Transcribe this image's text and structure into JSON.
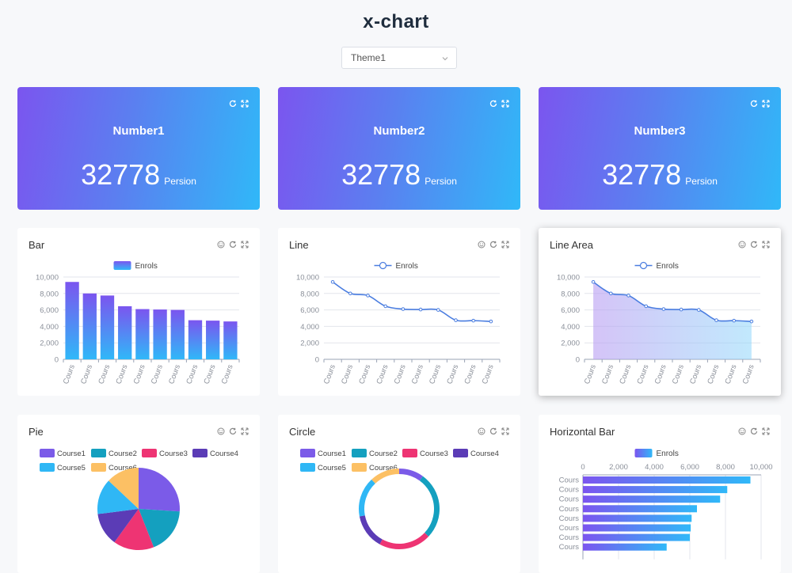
{
  "app_title": "x-chart",
  "theme_select": {
    "value": "Theme1"
  },
  "number_cards": [
    {
      "title": "Number1",
      "value": "32778",
      "unit": "Persion"
    },
    {
      "title": "Number2",
      "value": "32778",
      "unit": "Persion"
    },
    {
      "title": "Number3",
      "value": "32778",
      "unit": "Persion"
    }
  ],
  "cards": {
    "bar": {
      "title": "Bar"
    },
    "line": {
      "title": "Line"
    },
    "line_area": {
      "title": "Line Area"
    },
    "pie": {
      "title": "Pie"
    },
    "circle": {
      "title": "Circle"
    },
    "hbar": {
      "title": "Horizontal Bar"
    }
  },
  "colors": {
    "gradient_start": "#7b55ef",
    "gradient_end": "#30b8f8",
    "line": "#4a7de0",
    "course1": "#7b5be8",
    "course2": "#14a0bf",
    "course3": "#ee3473",
    "course4": "#5b3cb6",
    "course5": "#2fb7f5",
    "course6": "#fcc064"
  },
  "icons": {
    "number_card": [
      "refresh-icon",
      "fullscreen-icon"
    ],
    "chart_card": [
      "smile-icon",
      "refresh-icon",
      "fullscreen-icon"
    ]
  },
  "chart_data": [
    {
      "id": "bar",
      "type": "bar",
      "title": "Bar",
      "legend": [
        "Enrols"
      ],
      "legend_position": "top-center",
      "categories": [
        "Cours",
        "Cours",
        "Cours",
        "Cours",
        "Cours",
        "Cours",
        "Cours",
        "Cours",
        "Cours",
        "Cours"
      ],
      "values": [
        9400,
        8000,
        7750,
        6450,
        6100,
        6050,
        6000,
        4750,
        4700,
        4600
      ],
      "ylim": [
        0,
        10000
      ],
      "yticks": [
        "0",
        "2,000",
        "4,000",
        "6,000",
        "8,000",
        "10,000"
      ],
      "grid": true
    },
    {
      "id": "line",
      "type": "line",
      "title": "Line",
      "legend": [
        "Enrols"
      ],
      "legend_position": "top-center",
      "categories": [
        "Cours",
        "Cours",
        "Cours",
        "Cours",
        "Cours",
        "Cours",
        "Cours",
        "Cours",
        "Cours",
        "Cours"
      ],
      "values": [
        9400,
        8000,
        7750,
        6450,
        6100,
        6050,
        6000,
        4750,
        4700,
        4600
      ],
      "ylim": [
        0,
        10000
      ],
      "yticks": [
        "0",
        "2,000",
        "4,000",
        "6,000",
        "8,000",
        "10,000"
      ],
      "grid": true
    },
    {
      "id": "line_area",
      "type": "area",
      "title": "Line Area",
      "legend": [
        "Enrols"
      ],
      "legend_position": "top-center",
      "categories": [
        "Cours",
        "Cours",
        "Cours",
        "Cours",
        "Cours",
        "Cours",
        "Cours",
        "Cours",
        "Cours",
        "Cours"
      ],
      "values": [
        9400,
        8000,
        7750,
        6450,
        6100,
        6050,
        6000,
        4750,
        4700,
        4600
      ],
      "ylim": [
        0,
        10000
      ],
      "yticks": [
        "0",
        "2,000",
        "4,000",
        "6,000",
        "8,000",
        "10,000"
      ],
      "grid": true
    },
    {
      "id": "pie",
      "type": "pie",
      "title": "Pie",
      "legend": [
        "Course1",
        "Course2",
        "Course3",
        "Course4",
        "Course5",
        "Course6"
      ],
      "legend_position": "top",
      "values": [
        26,
        18,
        16,
        13,
        14,
        13
      ]
    },
    {
      "id": "circle",
      "type": "pie",
      "title": "Circle",
      "legend": [
        "Course1",
        "Course2",
        "Course3",
        "Course4",
        "Course5",
        "Course6"
      ],
      "legend_position": "top",
      "values": [
        10,
        27,
        21,
        14,
        16,
        12
      ]
    },
    {
      "id": "hbar",
      "type": "bar",
      "title": "Horizontal Bar",
      "orientation": "horizontal",
      "legend": [
        "Enrols"
      ],
      "legend_position": "top-center",
      "categories": [
        "Cours",
        "Cours",
        "Cours",
        "Cours",
        "Cours",
        "Cours",
        "Cours",
        "Cours"
      ],
      "values": [
        9400,
        8100,
        7700,
        6400,
        6100,
        6050,
        6000,
        4700
      ],
      "xlim": [
        0,
        10000
      ],
      "xticks": [
        "0",
        "2,000",
        "4,000",
        "6,000",
        "8,000",
        "10,000"
      ],
      "grid": true
    }
  ]
}
